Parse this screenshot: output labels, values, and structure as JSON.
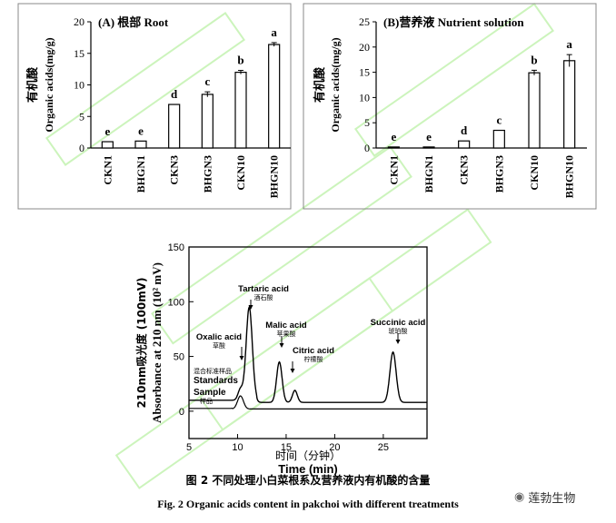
{
  "panels": [
    {
      "title": "(A) 根部 Root",
      "ylabel_cn": "有机酸",
      "ylabel_en": "Organic  acids(mg/g)",
      "ymax": 20,
      "ticks": [
        0,
        5,
        10,
        15,
        20
      ],
      "categories": [
        "CKN1",
        "BHGN1",
        "CKN3",
        "BHGN3",
        "CKN10",
        "BHGN10"
      ],
      "values": [
        1.0,
        1.1,
        6.9,
        8.5,
        12.0,
        16.4
      ],
      "errors": [
        0.0,
        0.0,
        0.0,
        0.4,
        0.3,
        0.3
      ],
      "letters": [
        "e",
        "e",
        "d",
        "c",
        "b",
        "a"
      ]
    },
    {
      "title": "(B)营养液 Nutrient solution",
      "ylabel_cn": "有机酸",
      "ylabel_en": "Organic  acids(mg/g)",
      "ymax": 25,
      "ticks": [
        0,
        5,
        10,
        15,
        20,
        25
      ],
      "categories": [
        "CKN1",
        "BHGN1",
        "CKN3",
        "BHGN3",
        "CKN10",
        "BHGN10"
      ],
      "values": [
        0.2,
        0.2,
        1.4,
        3.5,
        14.9,
        17.3
      ],
      "errors": [
        0.0,
        0.0,
        0.0,
        0.0,
        0.5,
        1.2
      ],
      "letters": [
        "e",
        "e",
        "d",
        "c",
        "b",
        "a"
      ]
    }
  ],
  "chromatogram": {
    "ylabel_cn": "210nm吸光度 (100mV)",
    "ylabel_en": "Absorbance at 210 nm (10² mV)",
    "xlabel_cn": "时间（分钟）",
    "xlabel_en": "Time (min)",
    "xticks": [
      5,
      10,
      15,
      20,
      25
    ],
    "yticks": [
      0,
      50,
      100,
      150
    ],
    "standards_label_cn": "混合标准样品",
    "standards_label": "Standards",
    "sample_label": "Sample",
    "sample_label_cn": "样品",
    "peaks": [
      {
        "name": "Oxalic acid",
        "cn": "草酸"
      },
      {
        "name": "Tartaric acid",
        "cn": "酒石酸"
      },
      {
        "name": "Malic acid",
        "cn": "苹果酸"
      },
      {
        "name": "Citric acid",
        "cn": "柠檬酸"
      },
      {
        "name": "Succinic acid",
        "cn": "琥珀酸"
      }
    ]
  },
  "caption_cn": "图 2  不同处理小白菜根系及营养液内有机酸的含量",
  "caption_en": "Fig. 2 Organic acids content in pakchoi with different treatments",
  "brand": "莲勃生物",
  "colors": {
    "watermark": "#b9f0a4",
    "axis": "#000000"
  }
}
